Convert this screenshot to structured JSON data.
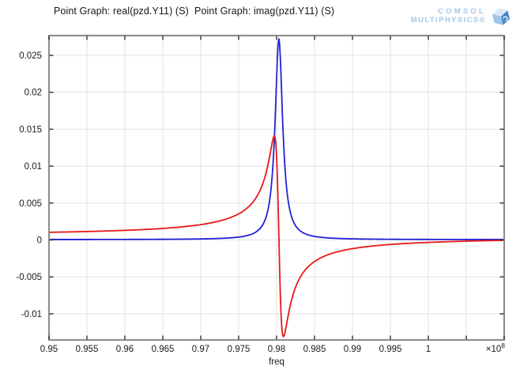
{
  "header": {
    "title": "Point Graph: real(pzd.Y11) (S)  Point Graph: imag(pzd.Y11) (S)",
    "logo": {
      "line1": "COMSOL",
      "line2": "MULTIPHYSICS®",
      "text_color": "#a6c7e6",
      "cube": {
        "top": "#d7e8f7",
        "left": "#9dc4e9",
        "right": "#4b87c8",
        "swirl": "#eef6fc"
      }
    }
  },
  "chart_data": {
    "type": "line",
    "title": "Point Graph: real(pzd.Y11) (S)  Point Graph: imag(pzd.Y11) (S)",
    "xlabel": "freq",
    "ylabel": "",
    "x_exponent": {
      "mantissa": "×10",
      "exp": "8"
    },
    "xlim": [
      0.95,
      1.01
    ],
    "ylim": [
      -0.01354,
      0.02768
    ],
    "grid": true,
    "legend_position": "none",
    "x_ticks": [
      0.95,
      0.955,
      0.96,
      0.965,
      0.97,
      0.975,
      0.98,
      0.985,
      0.99,
      0.995,
      1.0,
      1.005,
      1.01
    ],
    "x_tick_labels": [
      "0.95",
      "0.955",
      "0.96",
      "0.965",
      "0.97",
      "0.975",
      "0.98",
      "0.985",
      "0.99",
      "0.995",
      "1",
      "",
      ""
    ],
    "y_ticks": [
      -0.01,
      -0.005,
      0,
      0.005,
      0.01,
      0.015,
      0.02,
      0.025
    ],
    "y_tick_labels": [
      "-0.01",
      "-0.005",
      "0",
      "0.005",
      "0.01",
      "0.015",
      "0.02",
      "0.025"
    ],
    "style": {
      "grid_color": "#e3e3e3",
      "frame_color": "#8f8f8f",
      "tick_color": "#3c3c3c",
      "text_color": "#1a1a1a",
      "background": "#ffffff"
    },
    "sampling": {
      "f_start": 0.95,
      "f_end": 1.01,
      "n_points": 601
    },
    "series": [
      {
        "name": "real(pzd.Y11) (S)",
        "color": "#2121d6",
        "line_width": 1.8,
        "model": {
          "type": "lorentzian_real",
          "f0": 0.9803,
          "gamma": 0.0006,
          "peak": 0.0272,
          "baseline": 5e-05
        },
        "values_at_ticks": [
          6e-05,
          7e-05,
          7e-05,
          0.0001,
          0.00014,
          0.00039,
          0.0218,
          0.00049,
          0.00015,
          0.0001,
          8e-05,
          7e-05,
          6e-05
        ],
        "key_points": {
          "peak_freq": 0.9803,
          "peak_value": 0.0272,
          "left_edge_value": 6e-05,
          "right_edge_value": 6e-05
        }
      },
      {
        "name": "imag(pzd.Y11) (S)",
        "color": "#e81818",
        "line_width": 1.8,
        "model": {
          "type": "lorentzian_imag",
          "f0": 0.9803,
          "gamma": 0.0006,
          "peak": 0.0272,
          "baseline": 0.0005
        },
        "values_at_ticks": [
          0.00104,
          0.00115,
          0.0013,
          0.00157,
          0.00208,
          0.00354,
          0.01138,
          -0.00292,
          -0.00126,
          -0.00061,
          -0.00033,
          -0.00016,
          -5e-05
        ],
        "key_points": {
          "max_freq": 0.9797,
          "max_value": 0.0141,
          "zero_cross_freq": 0.9803,
          "min_freq": 0.9809,
          "min_value": -0.0131,
          "left_edge_value": 0.00104,
          "right_edge_value": -5e-05
        }
      }
    ]
  }
}
